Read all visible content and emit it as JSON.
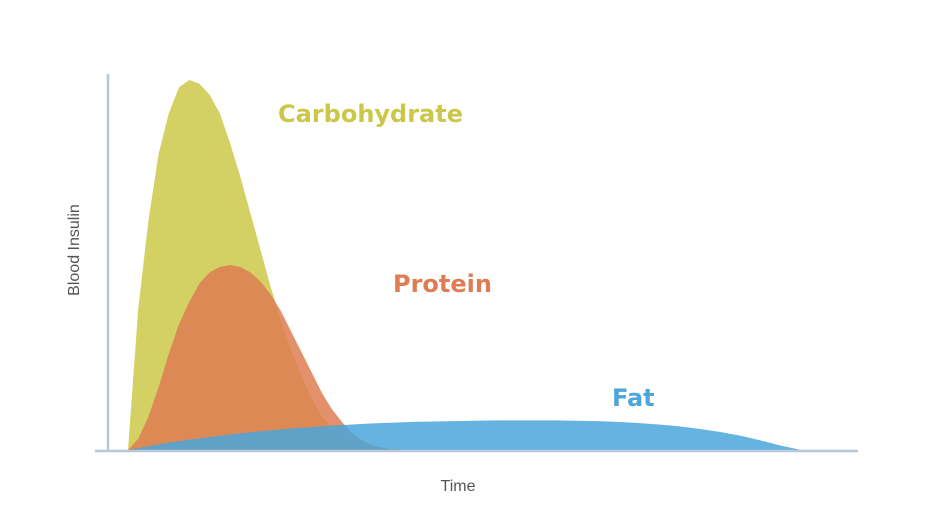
{
  "chart_data": {
    "type": "area",
    "xlabel": "Time",
    "ylabel": "Blood Insulin",
    "grid": false,
    "ticks": false,
    "legend": "inline labels",
    "series": [
      {
        "name": "Carbohydrate",
        "color": "#cbc849",
        "x": [
          0,
          1,
          2,
          3,
          4,
          5,
          6,
          7,
          8,
          9,
          10,
          11,
          12,
          13,
          14,
          15,
          16,
          17,
          18,
          19,
          20,
          21,
          22,
          23,
          24,
          25,
          26,
          27,
          28
        ],
        "values": [
          0,
          38,
          62,
          80,
          91,
          98,
          100,
          99,
          96,
          91,
          83,
          74,
          64,
          54,
          44,
          35,
          27,
          20,
          14,
          9,
          6,
          3.5,
          2,
          1.2,
          0.6,
          0.3,
          0.1,
          0,
          0
        ]
      },
      {
        "name": "Protein",
        "color": "#de7d53",
        "x": [
          0,
          1,
          2,
          3,
          4,
          5,
          6,
          7,
          8,
          9,
          10,
          11,
          12,
          13,
          14,
          15,
          16,
          17,
          18,
          19,
          20,
          21,
          22,
          23,
          24,
          25,
          26,
          27,
          28,
          29,
          30
        ],
        "values": [
          0,
          3,
          9,
          17,
          26,
          34,
          40,
          45,
          48,
          49.5,
          50,
          49.5,
          48,
          45.5,
          42,
          37.5,
          32,
          26.5,
          21,
          15.5,
          11,
          7.5,
          4.5,
          2.5,
          1.3,
          0.6,
          0.2,
          0,
          0,
          0,
          0
        ]
      },
      {
        "name": "Fat",
        "color": "#4aa6db",
        "x": [
          0,
          2,
          4,
          6,
          8,
          10,
          12,
          14,
          16,
          18,
          20,
          22,
          24,
          26,
          28,
          30,
          32,
          34,
          36,
          38,
          40,
          42,
          44,
          46,
          48,
          50,
          52,
          54,
          56,
          58,
          60,
          62,
          64,
          66
        ],
        "values": [
          0,
          1,
          2,
          2.8,
          3.5,
          4.2,
          4.8,
          5.3,
          5.8,
          6.2,
          6.6,
          6.9,
          7.2,
          7.4,
          7.6,
          7.7,
          7.8,
          7.9,
          8,
          8,
          8,
          8,
          7.9,
          7.8,
          7.6,
          7.3,
          6.9,
          6.4,
          5.7,
          4.9,
          3.9,
          2.6,
          1.2,
          0
        ]
      }
    ]
  },
  "colors": {
    "axis": "#b9c7d6",
    "carbohydrate_label": "#cbc849",
    "protein_label": "#de7d53",
    "fat_label": "#4aa6db"
  }
}
